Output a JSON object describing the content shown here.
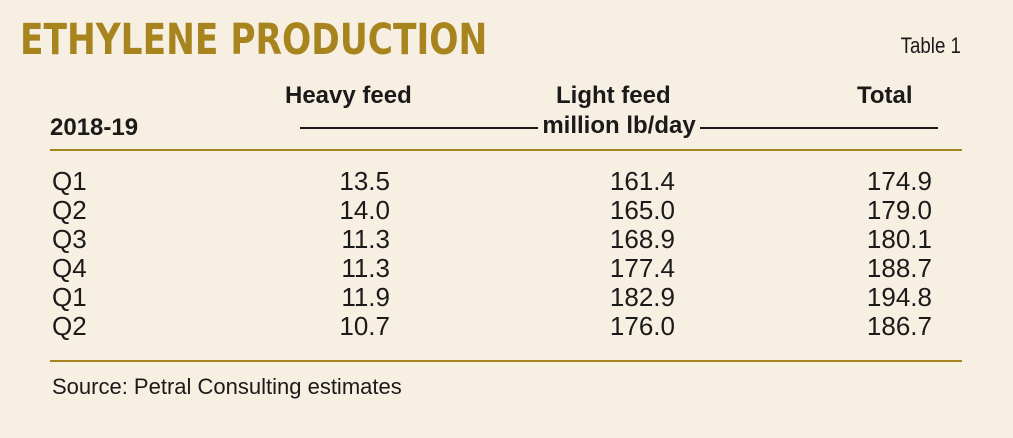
{
  "header": {
    "title": "ETHYLENE PRODUCTION",
    "table_label": "Table 1"
  },
  "columns": {
    "heavy": "Heavy feed",
    "light": "Light feed",
    "total": "Total",
    "period": "2018-19",
    "unit": "million lb/day"
  },
  "rows": [
    {
      "quarter": "Q1",
      "heavy": "13.5",
      "light": "161.4",
      "total": "174.9"
    },
    {
      "quarter": "Q2",
      "heavy": "14.0",
      "light": "165.0",
      "total": "179.0"
    },
    {
      "quarter": "Q3",
      "heavy": "11.3",
      "light": "168.9",
      "total": "180.1"
    },
    {
      "quarter": "Q4",
      "heavy": "11.3",
      "light": "177.4",
      "total": "188.7"
    },
    {
      "quarter": "Q1",
      "heavy": "11.9",
      "light": "182.9",
      "total": "194.8"
    },
    {
      "quarter": "Q2",
      "heavy": "10.7",
      "light": "176.0",
      "total": "186.7"
    }
  ],
  "footer": {
    "source": "Source: Petral Consulting estimates"
  },
  "colors": {
    "accent": "#a8841f",
    "background": "#f8efe3",
    "text": "#1a1a1a"
  }
}
